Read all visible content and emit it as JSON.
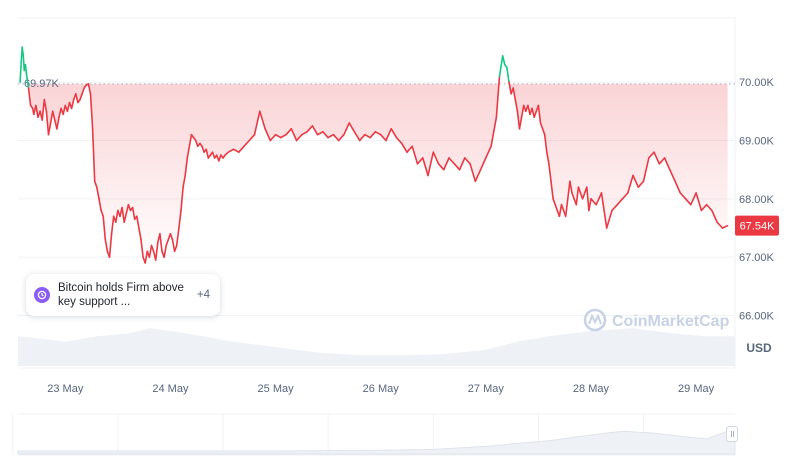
{
  "chart_data": {
    "type": "line",
    "currency": "USD",
    "ylim": [
      65100,
      71100
    ],
    "y_ticks": [
      70000,
      69000,
      68000,
      67000,
      66000
    ],
    "y_tick_labels": [
      "70.00K",
      "69.00K",
      "68.00K",
      "67.00K",
      "66.00K"
    ],
    "x_ticks": [
      23,
      24,
      25,
      26,
      27,
      28,
      29
    ],
    "x_tick_labels": [
      "23 May",
      "24 May",
      "25 May",
      "26 May",
      "27 May",
      "28 May",
      "29 May"
    ],
    "xlim": [
      22.55,
      29.37
    ],
    "reference_line": {
      "value": 69970,
      "label": "69.97K"
    },
    "current_price": {
      "value": 67540,
      "label": "67.54K"
    },
    "colors": {
      "down": "#ea3943",
      "up": "#16c784",
      "fill": "#ea3943"
    },
    "series": [
      {
        "x": [
          22.57,
          22.58,
          22.59,
          22.6,
          22.61,
          22.62,
          22.63,
          22.65,
          22.67,
          22.69,
          22.7,
          22.72,
          22.74,
          22.76,
          22.78,
          22.8,
          22.82,
          22.84,
          22.86,
          22.88,
          22.9,
          22.92,
          22.94,
          22.96,
          22.98,
          23.0,
          23.02,
          23.04,
          23.06,
          23.08,
          23.1,
          23.12,
          23.14,
          23.16,
          23.18,
          23.2,
          23.22,
          23.24,
          23.26,
          23.28,
          23.3,
          23.32,
          23.34,
          23.36,
          23.38,
          23.4,
          23.42,
          23.44,
          23.46,
          23.48,
          23.5,
          23.52,
          23.54,
          23.56,
          23.58,
          23.6,
          23.62,
          23.64,
          23.66,
          23.68,
          23.7,
          23.72,
          23.74,
          23.76,
          23.78,
          23.8,
          23.82,
          23.84,
          23.86,
          23.88,
          23.9,
          23.92,
          23.94,
          23.96,
          23.98,
          24.0,
          24.02,
          24.04,
          24.06,
          24.08,
          24.1,
          24.12,
          24.14,
          24.16,
          24.18,
          24.2,
          24.22,
          24.24,
          24.26,
          24.28,
          24.3,
          24.32,
          24.34,
          24.36,
          24.38,
          24.4,
          24.42,
          24.44,
          24.46,
          24.48,
          24.5,
          24.52,
          24.55,
          24.6,
          24.65,
          24.7,
          24.75,
          24.8,
          24.85,
          24.9,
          24.95,
          25.0,
          25.05,
          25.1,
          25.15,
          25.2,
          25.25,
          25.3,
          25.35,
          25.4,
          25.45,
          25.5,
          25.55,
          25.6,
          25.65,
          25.7,
          25.75,
          25.8,
          25.85,
          25.9,
          25.95,
          26.0,
          26.05,
          26.1,
          26.15,
          26.2,
          26.25,
          26.3,
          26.35,
          26.4,
          26.45,
          26.5,
          26.55,
          26.6,
          26.65,
          26.7,
          26.75,
          26.8,
          26.85,
          26.9,
          26.95,
          27.0,
          27.05,
          27.1,
          27.13,
          27.16,
          27.18,
          27.2,
          27.22,
          27.24,
          27.26,
          27.28,
          27.3,
          27.32,
          27.34,
          27.36,
          27.38,
          27.4,
          27.42,
          27.44,
          27.46,
          27.48,
          27.5,
          27.52,
          27.54,
          27.56,
          27.58,
          27.6,
          27.62,
          27.64,
          27.66,
          27.68,
          27.7,
          27.72,
          27.74,
          27.76,
          27.78,
          27.8,
          27.82,
          27.84,
          27.86,
          27.88,
          27.9,
          27.92,
          27.94,
          27.96,
          27.98,
          28.0,
          28.05,
          28.1,
          28.15,
          28.2,
          28.25,
          28.3,
          28.35,
          28.4,
          28.45,
          28.5,
          28.55,
          28.6,
          28.65,
          28.7,
          28.75,
          28.8,
          28.85,
          28.9,
          28.95,
          29.0,
          29.05,
          29.1,
          29.15,
          29.2,
          29.25,
          29.3
        ],
        "values": [
          70000,
          70350,
          70600,
          70450,
          70200,
          70300,
          70150,
          69900,
          69600,
          69550,
          69450,
          69600,
          69400,
          69500,
          69350,
          69700,
          69500,
          69100,
          69300,
          69500,
          69350,
          69200,
          69400,
          69550,
          69450,
          69600,
          69500,
          69650,
          69550,
          69700,
          69800,
          69650,
          69700,
          69800,
          69900,
          69950,
          69970,
          69800,
          69200,
          68300,
          68200,
          68000,
          67800,
          67700,
          67300,
          67100,
          67000,
          67400,
          67700,
          67600,
          67800,
          67700,
          67850,
          67600,
          67750,
          67900,
          67800,
          67850,
          67650,
          67700,
          67500,
          67300,
          67000,
          66900,
          67100,
          67000,
          67200,
          67100,
          66950,
          67250,
          67400,
          67100,
          67000,
          67200,
          67300,
          67400,
          67300,
          67100,
          67200,
          67500,
          67800,
          68200,
          68400,
          68700,
          68900,
          69100,
          69050,
          69000,
          68900,
          68950,
          68900,
          68800,
          68850,
          68700,
          68750,
          68800,
          68700,
          68750,
          68650,
          68750,
          68700,
          68750,
          68800,
          68850,
          68800,
          68900,
          69000,
          69100,
          69500,
          69200,
          69000,
          69100,
          69050,
          69100,
          69200,
          69000,
          69100,
          69150,
          69250,
          69100,
          69150,
          69050,
          69100,
          69000,
          69100,
          69300,
          69150,
          69000,
          69100,
          69050,
          69150,
          69100,
          69000,
          69200,
          69050,
          68950,
          68800,
          68900,
          68600,
          68700,
          68400,
          68800,
          68600,
          68500,
          68700,
          68600,
          68500,
          68700,
          68600,
          68300,
          68500,
          68700,
          68900,
          69400,
          70100,
          70450,
          70300,
          70250,
          70000,
          69800,
          69900,
          69700,
          69500,
          69200,
          69400,
          69600,
          69500,
          69600,
          69450,
          69550,
          69400,
          69500,
          69600,
          69300,
          69200,
          69100,
          68800,
          68600,
          68300,
          68000,
          67900,
          67800,
          67700,
          67900,
          67800,
          67700,
          68000,
          68300,
          68100,
          68000,
          67900,
          68200,
          68100,
          68000,
          68100,
          68200,
          67800,
          68000,
          67900,
          68100,
          67500,
          67800,
          67900,
          68000,
          68100,
          68400,
          68200,
          68300,
          68700,
          68800,
          68600,
          68700,
          68500,
          68300,
          68100,
          68000,
          67900,
          68100,
          67800,
          67900,
          67800,
          67600,
          67500,
          67540
        ]
      }
    ],
    "volume": {
      "x": [
        22.55,
        22.8,
        23.0,
        23.3,
        23.6,
        23.8,
        24.0,
        24.3,
        24.6,
        25.0,
        25.4,
        25.8,
        26.2,
        26.6,
        27.0,
        27.3,
        27.6,
        28.0,
        28.4,
        28.8,
        29.1,
        29.37
      ],
      "values": [
        0.55,
        0.5,
        0.45,
        0.55,
        0.6,
        0.7,
        0.65,
        0.55,
        0.45,
        0.35,
        0.25,
        0.2,
        0.2,
        0.22,
        0.3,
        0.45,
        0.55,
        0.65,
        0.7,
        0.6,
        0.55,
        0.55
      ]
    },
    "navigator": {
      "x": [
        22.55,
        25.0,
        26.0,
        26.5,
        27.0,
        27.3,
        27.6,
        28.0,
        28.3,
        28.6,
        28.9,
        29.1,
        29.3,
        29.37
      ],
      "values": [
        0.08,
        0.08,
        0.1,
        0.12,
        0.2,
        0.28,
        0.35,
        0.5,
        0.6,
        0.55,
        0.45,
        0.4,
        0.6,
        0.7
      ]
    }
  },
  "news": {
    "text": "Bitcoin holds Firm above key support ...",
    "count": "+4",
    "icon": "clock-history-icon"
  },
  "watermark": {
    "text": "CoinMarketCap",
    "icon": "coinmarketcap-logo-icon"
  }
}
